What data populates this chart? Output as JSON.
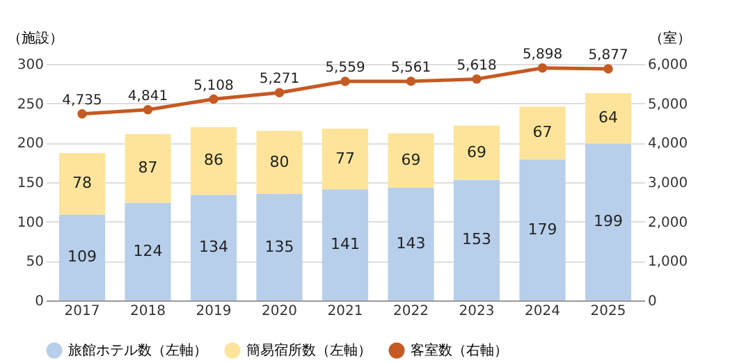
{
  "chart_data": {
    "type": "bar",
    "stacked": true,
    "categories": [
      "2017",
      "2018",
      "2019",
      "2020",
      "2021",
      "2022",
      "2023",
      "2024",
      "2025"
    ],
    "ylabel": "（施設）",
    "y2label": "（室）",
    "ylim": [
      0,
      300
    ],
    "yticks": [
      0,
      50,
      100,
      150,
      200,
      250,
      300
    ],
    "y2lim": [
      0,
      6000
    ],
    "y2ticks": [
      {
        "value": 0,
        "label": "0"
      },
      {
        "value": 1000,
        "label": "1,000"
      },
      {
        "value": 2000,
        "label": "2,000"
      },
      {
        "value": 3000,
        "label": "3,000"
      },
      {
        "value": 4000,
        "label": "4,000"
      },
      {
        "value": 5000,
        "label": "5,000"
      },
      {
        "value": 6000,
        "label": "6,000"
      }
    ],
    "grid": "y",
    "legend": "bottom",
    "data_labels": true,
    "series": [
      {
        "name": "旅館ホテル数（左軸）",
        "color": "#b7cfeb",
        "values": [
          109,
          124,
          134,
          135,
          141,
          143,
          153,
          179,
          199
        ]
      },
      {
        "name": "簡易宿所数（左軸）",
        "color": "#fde49a",
        "values": [
          78,
          87,
          86,
          80,
          77,
          69,
          69,
          67,
          64
        ]
      },
      {
        "name": "客室数（右軸）",
        "color": "#c55a22",
        "type": "line",
        "axis": "y2",
        "marker": "circle",
        "values": [
          4735,
          4841,
          5108,
          5271,
          5559,
          5561,
          5618,
          5898,
          5877
        ],
        "value_labels": [
          "4,735",
          "4,841",
          "5,108",
          "5,271",
          "5,559",
          "5,561",
          "5,618",
          "5,898",
          "5,877"
        ]
      }
    ]
  }
}
